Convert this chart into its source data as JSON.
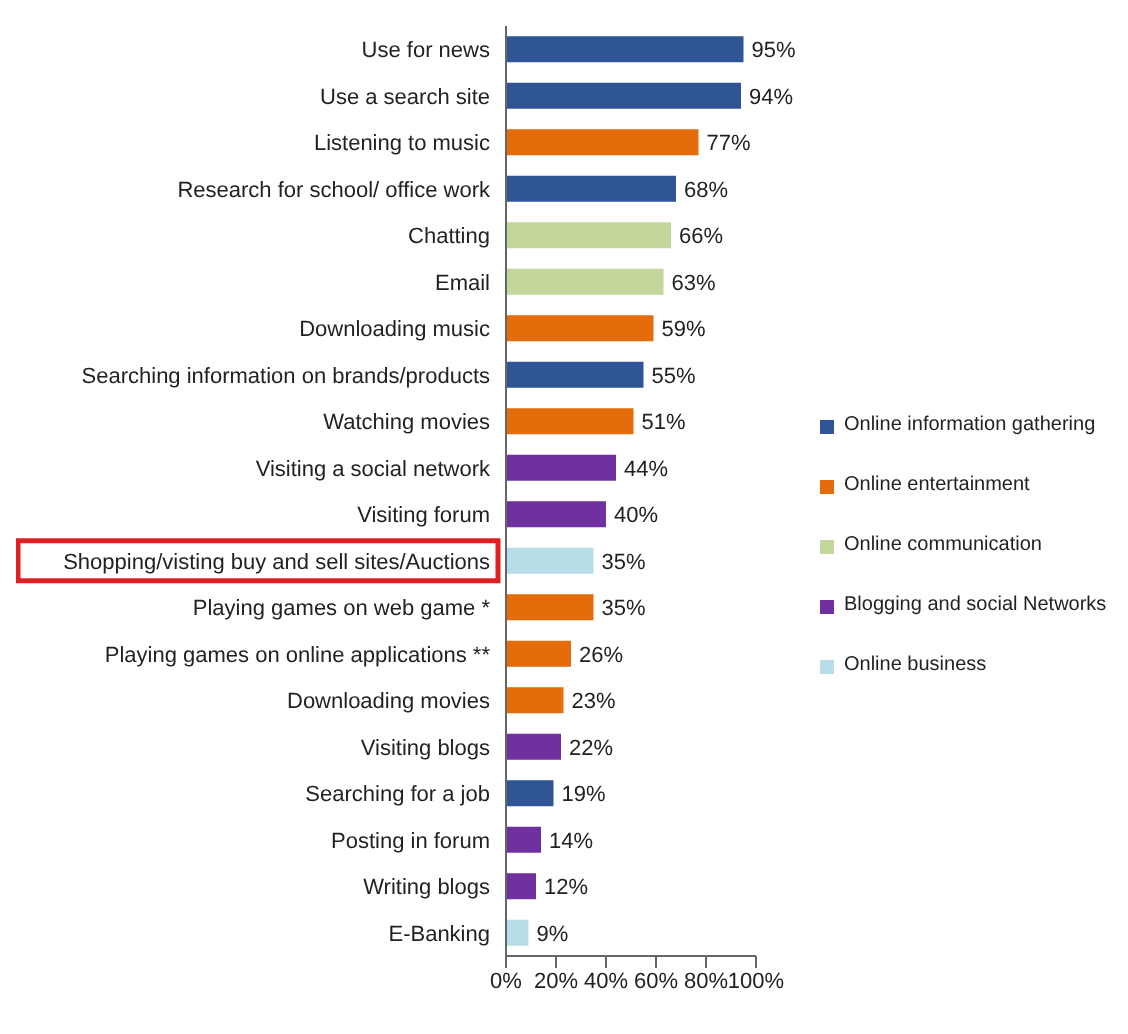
{
  "chart_data": {
    "type": "bar",
    "orientation": "horizontal",
    "stacked": true,
    "categories": [
      "Use for news",
      "Use a search site",
      "Listening to music",
      "Research for school/ office work",
      "Chatting",
      "Email",
      "Downloading music",
      "Searching information on brands/products",
      "Watching movies",
      "Visiting a social network",
      "Visiting forum",
      "Shopping/visting buy and sell sites/Auctions",
      "Playing games on web game *",
      "Playing games on online applications **",
      "Downloading movies",
      "Visiting blogs",
      "Searching for a job",
      "Posting in forum",
      "Writing blogs",
      "E-Banking"
    ],
    "series": [
      {
        "name": "Online information gathering",
        "color": "#2f5597",
        "values": [
          95,
          94,
          null,
          68,
          null,
          null,
          null,
          55,
          null,
          null,
          null,
          null,
          null,
          null,
          null,
          null,
          19,
          null,
          null,
          null
        ],
        "value_labels": [
          "95%",
          "94%",
          null,
          "68%",
          null,
          null,
          null,
          "55%",
          null,
          null,
          null,
          null,
          null,
          null,
          null,
          null,
          "19%",
          null,
          null,
          null
        ]
      },
      {
        "name": "Online entertainment",
        "color": "#e46c0a",
        "values": [
          null,
          null,
          77,
          null,
          null,
          null,
          59,
          null,
          51,
          null,
          null,
          null,
          35,
          26,
          23,
          null,
          null,
          null,
          null,
          null
        ],
        "value_labels": [
          null,
          null,
          "77%",
          null,
          null,
          null,
          "59%",
          null,
          "51%",
          null,
          null,
          null,
          "35%",
          "26%",
          "23%",
          null,
          null,
          null,
          null,
          null
        ]
      },
      {
        "name": "Online communication",
        "color": "#c3d69b",
        "values": [
          null,
          null,
          null,
          null,
          66,
          63,
          null,
          null,
          null,
          null,
          null,
          null,
          null,
          null,
          null,
          null,
          null,
          null,
          null,
          null
        ],
        "value_labels": [
          null,
          null,
          null,
          null,
          "66%",
          "63%",
          null,
          null,
          null,
          null,
          null,
          null,
          null,
          null,
          null,
          null,
          null,
          null,
          null,
          null
        ]
      },
      {
        "name": "Blogging and social Networks",
        "color": "#7030a0",
        "values": [
          null,
          null,
          null,
          null,
          null,
          null,
          null,
          null,
          null,
          44,
          40,
          null,
          null,
          null,
          null,
          22,
          null,
          14,
          12,
          null
        ],
        "value_labels": [
          null,
          null,
          null,
          null,
          null,
          null,
          null,
          null,
          null,
          "44%",
          "40%",
          null,
          null,
          null,
          null,
          "22%",
          null,
          "14%",
          "12%",
          null
        ]
      },
      {
        "name": "Online business",
        "color": "#b7dee8",
        "values": [
          null,
          null,
          null,
          null,
          null,
          null,
          null,
          null,
          null,
          null,
          null,
          35,
          null,
          null,
          null,
          null,
          null,
          null,
          null,
          9
        ],
        "value_labels": [
          null,
          null,
          null,
          null,
          null,
          null,
          null,
          null,
          null,
          null,
          null,
          "35%",
          null,
          null,
          null,
          null,
          null,
          null,
          null,
          "9%"
        ]
      }
    ],
    "xlim": [
      0,
      100
    ],
    "xticks": [
      {
        "value": 0,
        "label": "0%"
      },
      {
        "value": 20,
        "label": "20%"
      },
      {
        "value": 40,
        "label": "40%"
      },
      {
        "value": 60,
        "label": "60%"
      },
      {
        "value": 80,
        "label": "80%"
      },
      {
        "value": 100,
        "label": "100%"
      }
    ],
    "legend": "right",
    "grid": false
  }
}
